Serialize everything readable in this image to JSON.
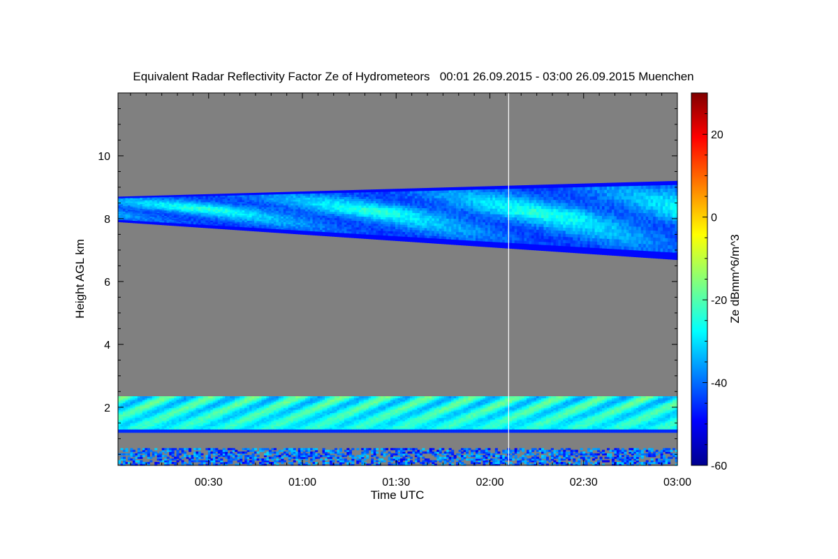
{
  "chart_data": {
    "type": "heatmap",
    "title": "Equivalent Radar Reflectivity Factor Ze of Hydrometeors   00:01 26.09.2015 - 03:00 26.09.2015 Muenchen",
    "xlabel": "Time UTC",
    "ylabel": "Height AGL km",
    "colorbar_label": "Ze dBmm^6/m^3",
    "x_range_min": [
      1,
      180
    ],
    "x_ticks": [
      {
        "min": 30,
        "label": "00:30"
      },
      {
        "min": 60,
        "label": "01:00"
      },
      {
        "min": 90,
        "label": "01:30"
      },
      {
        "min": 120,
        "label": "02:00"
      },
      {
        "min": 150,
        "label": "02:30"
      },
      {
        "min": 180,
        "label": "03:00"
      }
    ],
    "y_range_km": [
      0.15,
      12
    ],
    "y_ticks": [
      2,
      4,
      6,
      8,
      10
    ],
    "colorbar_range": [
      -60,
      30
    ],
    "colorbar_ticks": [
      -60,
      -40,
      -20,
      0,
      20
    ],
    "colormap": "jet",
    "background_color": "#808080",
    "marker_line_min": 126,
    "features": [
      {
        "name": "upper ice cloud",
        "x_min": [
          1,
          180
        ],
        "top_km": [
          8.7,
          9.2
        ],
        "base_km": [
          7.9,
          6.7
        ],
        "ze_dbz_range": [
          -45,
          -22
        ]
      },
      {
        "name": "boundary layer echo",
        "x_min": [
          1,
          180
        ],
        "top_km": 2.35,
        "base_km": 1.2,
        "ze_dbz_range": [
          -40,
          -12
        ]
      },
      {
        "name": "near-surface clutter",
        "x_min": [
          1,
          180
        ],
        "top_km": 0.7,
        "base_km": 0.15,
        "ze_dbz_range": [
          -50,
          -30
        ]
      }
    ]
  }
}
